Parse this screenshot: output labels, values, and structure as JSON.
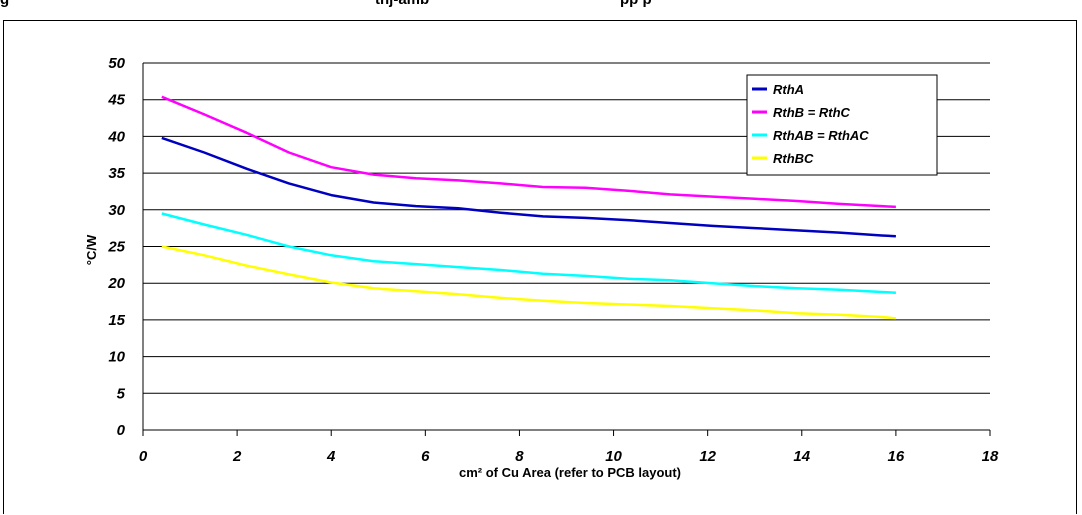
{
  "header": {
    "left_fragment": "g",
    "mid_fragment": "thj-amb",
    "right_fragment": "pp         p"
  },
  "chart_data": {
    "type": "line",
    "xlabel": "cm² of Cu Area (refer to PCB layout)",
    "ylabel": "°C/W",
    "xlim": [
      0,
      18
    ],
    "ylim": [
      0,
      50
    ],
    "x_ticks": [
      "0",
      "2",
      "4",
      "6",
      "8",
      "10",
      "12",
      "14",
      "16",
      "18"
    ],
    "y_ticks": [
      "0",
      "5",
      "10",
      "15",
      "20",
      "25",
      "30",
      "35",
      "40",
      "45",
      "50"
    ],
    "grid": "horizontal",
    "legend_position": "top-right",
    "x": [
      0.4,
      1.3,
      2.2,
      3.1,
      4.0,
      4.9,
      5.8,
      6.7,
      7.6,
      8.5,
      9.4,
      10.3,
      11.2,
      12.1,
      13.0,
      13.9,
      14.8,
      15.7,
      16.0
    ],
    "series": [
      {
        "name": "RthA",
        "color": "#0000c0",
        "values": [
          39.8,
          37.8,
          35.6,
          33.6,
          32.0,
          31.0,
          30.5,
          30.2,
          29.6,
          29.1,
          28.9,
          28.6,
          28.2,
          27.8,
          27.5,
          27.2,
          26.9,
          26.5,
          26.4
        ]
      },
      {
        "name": "RthB = RthC",
        "color": "#ff00ff",
        "values": [
          45.4,
          43.0,
          40.5,
          37.8,
          35.8,
          34.8,
          34.3,
          34.0,
          33.6,
          33.1,
          33.0,
          32.6,
          32.1,
          31.8,
          31.5,
          31.2,
          30.8,
          30.5,
          30.4
        ]
      },
      {
        "name": "RthAB = RthAC",
        "color": "#00ffff",
        "values": [
          29.5,
          28.0,
          26.6,
          25.0,
          23.8,
          23.0,
          22.6,
          22.2,
          21.8,
          21.3,
          21.0,
          20.6,
          20.4,
          20.0,
          19.6,
          19.3,
          19.1,
          18.8,
          18.7
        ]
      },
      {
        "name": "RthBC",
        "color": "#ffff00",
        "values": [
          25.0,
          23.8,
          22.4,
          21.2,
          20.1,
          19.3,
          18.9,
          18.5,
          18.0,
          17.6,
          17.3,
          17.1,
          16.9,
          16.6,
          16.3,
          15.9,
          15.7,
          15.4,
          15.2
        ]
      }
    ]
  }
}
